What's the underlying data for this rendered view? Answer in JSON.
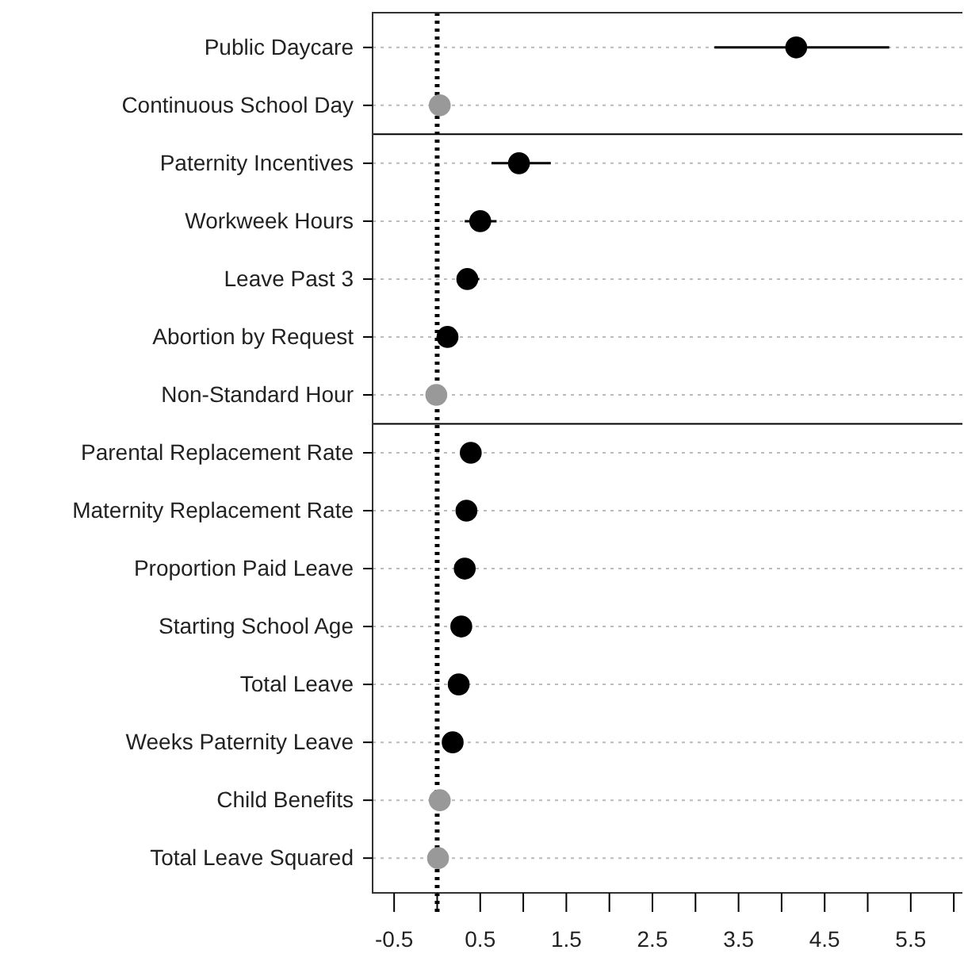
{
  "chart_data": {
    "type": "scatter",
    "orientation": "horizontal",
    "marker": "circle",
    "grid": "y",
    "categories": [
      "Public Daycare",
      "Continuous School Day",
      "Paternity Incentives",
      "Workweek Hours",
      "Leave Past 3",
      "Abortion by Request",
      "Non-Standard Hour",
      "Parental Replacement Rate",
      "Maternity Replacement Rate",
      "Proportion Paid Leave",
      "Starting School Age",
      "Total Leave",
      "Weeks Paternity Leave",
      "Child Benefits",
      "Total Leave Squared"
    ],
    "values": [
      4.17,
      0.03,
      0.95,
      0.5,
      0.35,
      0.12,
      -0.01,
      0.39,
      0.34,
      0.32,
      0.28,
      0.25,
      0.18,
      0.03,
      0.01
    ],
    "errors": [
      [
        3.22,
        5.25
      ],
      null,
      [
        0.63,
        1.32
      ],
      [
        0.32,
        0.69
      ],
      [
        0.26,
        0.49
      ],
      null,
      null,
      null,
      null,
      null,
      null,
      null,
      null,
      null,
      null
    ],
    "colors": [
      "#000000",
      "#999999",
      "#000000",
      "#000000",
      "#000000",
      "#000000",
      "#999999",
      "#000000",
      "#000000",
      "#000000",
      "#000000",
      "#000000",
      "#000000",
      "#999999",
      "#999999"
    ],
    "xlim": [
      -0.75,
      6.1
    ],
    "xticks": [
      -0.5,
      {
        "value": 0,
        "label": null
      },
      0.5,
      {
        "value": 1,
        "label": null
      },
      1.5,
      {
        "value": 2,
        "label": null
      },
      2.5,
      {
        "value": 3,
        "label": null
      },
      3.5,
      {
        "value": 4,
        "label": null
      },
      4.5,
      {
        "value": 5,
        "label": null
      },
      5.5,
      {
        "value": 6,
        "label": null
      }
    ],
    "ref_lines": [
      {
        "axis": "x",
        "value": 0,
        "color": "#000000",
        "line_style": "dotted"
      }
    ]
  }
}
